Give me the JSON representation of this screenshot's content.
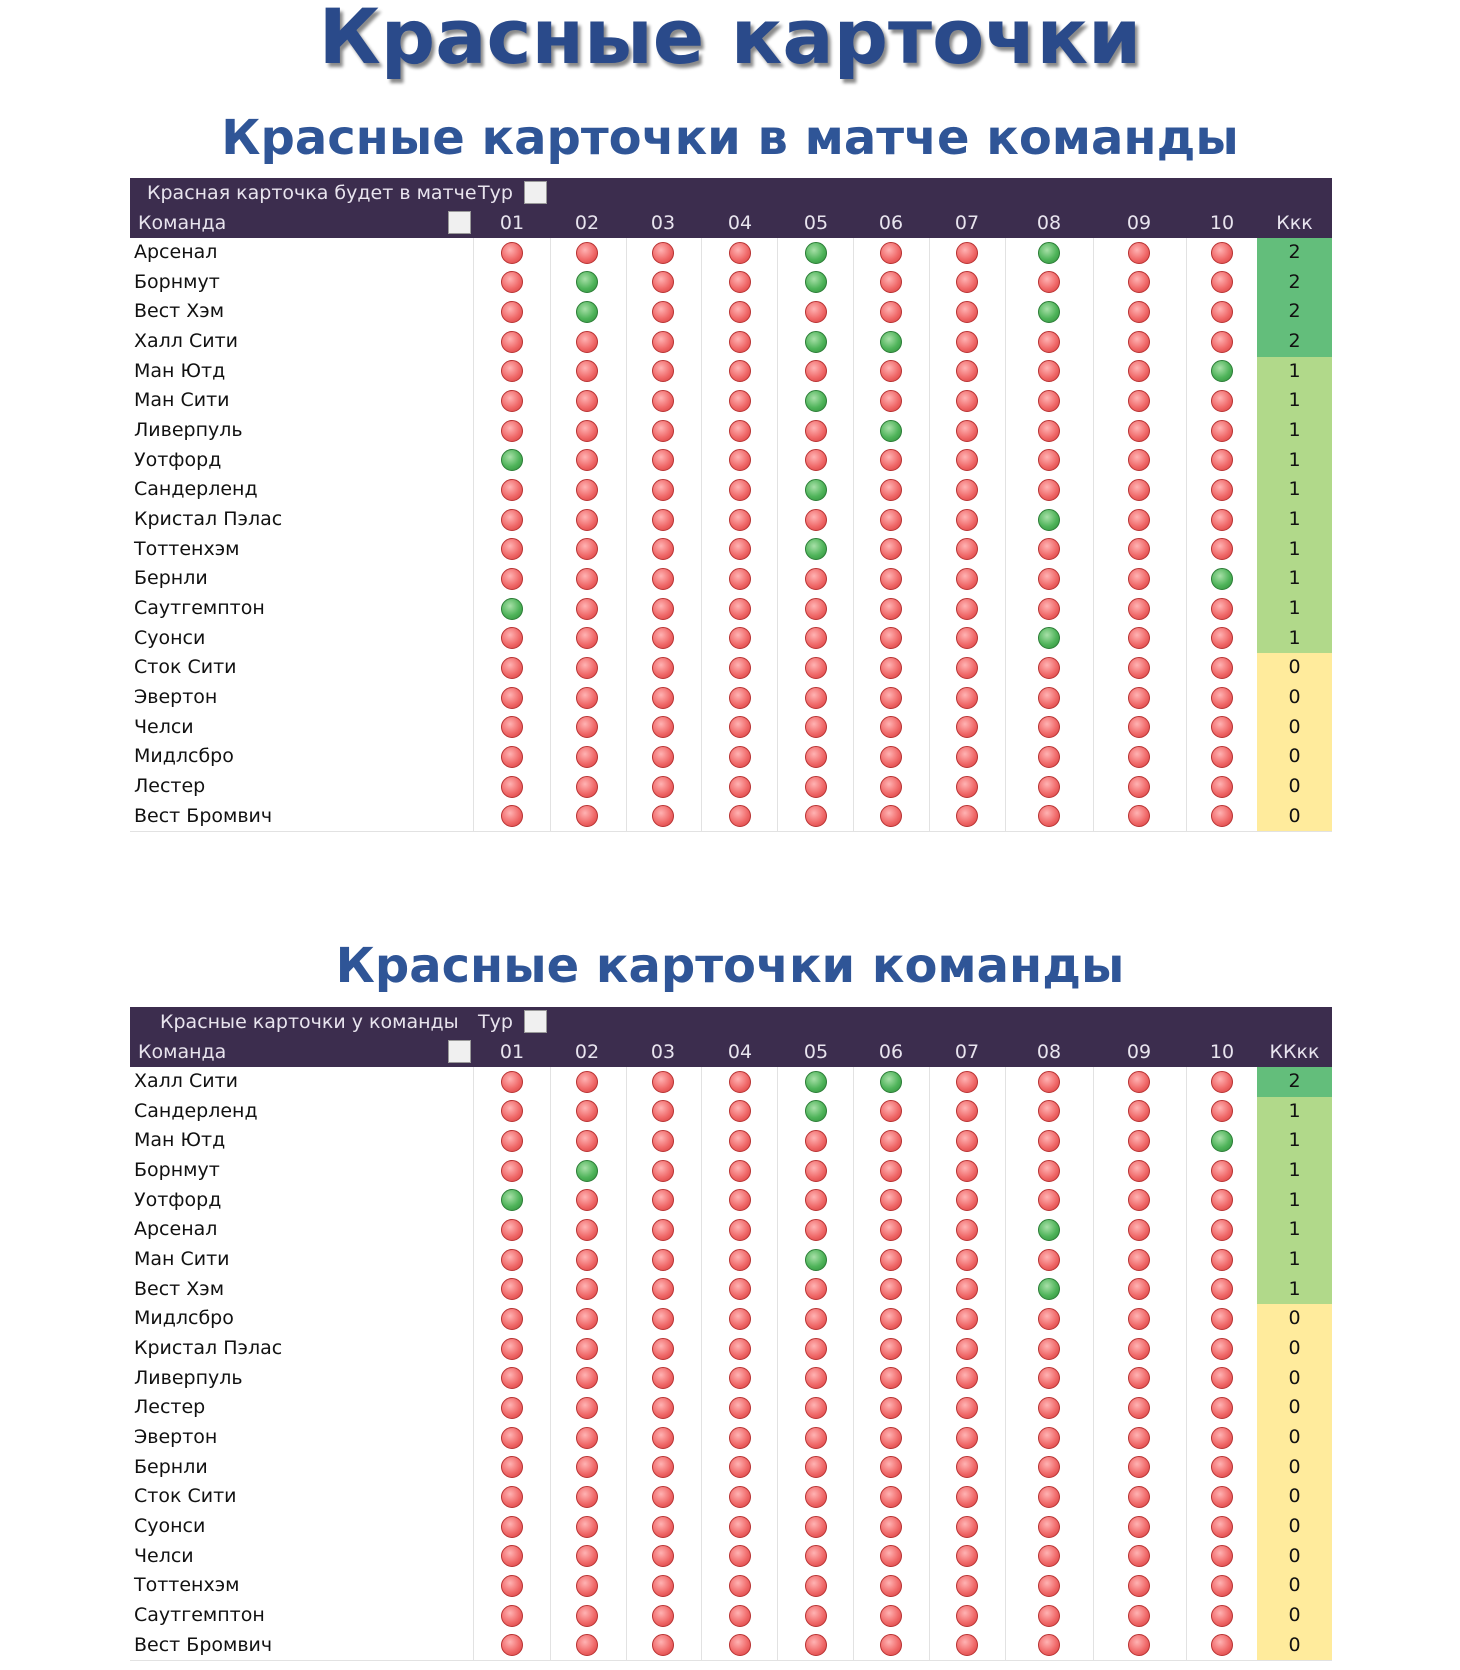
{
  "title": "Красные карточки",
  "tables": [
    {
      "title": "Красные карточки в матче команды",
      "header_label": "Красная карточка будет в матче",
      "tour_label": "Тур",
      "team_label": "Команда",
      "total_label": "Ккк",
      "columns": [
        "01",
        "02",
        "03",
        "04",
        "05",
        "06",
        "07",
        "08",
        "09",
        "10"
      ],
      "rows": [
        {
          "team": "Арсенал",
          "cells": [
            0,
            0,
            0,
            0,
            1,
            0,
            0,
            1,
            0,
            0
          ],
          "total": 2
        },
        {
          "team": "Борнмут",
          "cells": [
            0,
            1,
            0,
            0,
            1,
            0,
            0,
            0,
            0,
            0
          ],
          "total": 2
        },
        {
          "team": "Вест Хэм",
          "cells": [
            0,
            1,
            0,
            0,
            0,
            0,
            0,
            1,
            0,
            0
          ],
          "total": 2
        },
        {
          "team": "Халл Сити",
          "cells": [
            0,
            0,
            0,
            0,
            1,
            1,
            0,
            0,
            0,
            0
          ],
          "total": 2
        },
        {
          "team": "Ман Ютд",
          "cells": [
            0,
            0,
            0,
            0,
            0,
            0,
            0,
            0,
            0,
            1
          ],
          "total": 1
        },
        {
          "team": "Ман Сити",
          "cells": [
            0,
            0,
            0,
            0,
            1,
            0,
            0,
            0,
            0,
            0
          ],
          "total": 1
        },
        {
          "team": "Ливерпуль",
          "cells": [
            0,
            0,
            0,
            0,
            0,
            1,
            0,
            0,
            0,
            0
          ],
          "total": 1
        },
        {
          "team": "Уотфорд",
          "cells": [
            1,
            0,
            0,
            0,
            0,
            0,
            0,
            0,
            0,
            0
          ],
          "total": 1
        },
        {
          "team": "Сандерленд",
          "cells": [
            0,
            0,
            0,
            0,
            1,
            0,
            0,
            0,
            0,
            0
          ],
          "total": 1
        },
        {
          "team": "Кристал Пэлас",
          "cells": [
            0,
            0,
            0,
            0,
            0,
            0,
            0,
            1,
            0,
            0
          ],
          "total": 1
        },
        {
          "team": "Тоттенхэм",
          "cells": [
            0,
            0,
            0,
            0,
            1,
            0,
            0,
            0,
            0,
            0
          ],
          "total": 1
        },
        {
          "team": "Бернли",
          "cells": [
            0,
            0,
            0,
            0,
            0,
            0,
            0,
            0,
            0,
            1
          ],
          "total": 1
        },
        {
          "team": "Саутгемптон",
          "cells": [
            1,
            0,
            0,
            0,
            0,
            0,
            0,
            0,
            0,
            0
          ],
          "total": 1
        },
        {
          "team": "Суонси",
          "cells": [
            0,
            0,
            0,
            0,
            0,
            0,
            0,
            1,
            0,
            0
          ],
          "total": 1
        },
        {
          "team": "Сток Сити",
          "cells": [
            0,
            0,
            0,
            0,
            0,
            0,
            0,
            0,
            0,
            0
          ],
          "total": 0
        },
        {
          "team": "Эвертон",
          "cells": [
            0,
            0,
            0,
            0,
            0,
            0,
            0,
            0,
            0,
            0
          ],
          "total": 0
        },
        {
          "team": "Челси",
          "cells": [
            0,
            0,
            0,
            0,
            0,
            0,
            0,
            0,
            0,
            0
          ],
          "total": 0
        },
        {
          "team": "Мидлсбро",
          "cells": [
            0,
            0,
            0,
            0,
            0,
            0,
            0,
            0,
            0,
            0
          ],
          "total": 0
        },
        {
          "team": "Лестер",
          "cells": [
            0,
            0,
            0,
            0,
            0,
            0,
            0,
            0,
            0,
            0
          ],
          "total": 0
        },
        {
          "team": "Вест Бромвич",
          "cells": [
            0,
            0,
            0,
            0,
            0,
            0,
            0,
            0,
            0,
            0
          ],
          "total": 0
        }
      ]
    },
    {
      "title": "Красные карточки команды",
      "header_label": "Красные карточки у команды",
      "tour_label": "Тур",
      "team_label": "Команда",
      "total_label": "ККкк",
      "columns": [
        "01",
        "02",
        "03",
        "04",
        "05",
        "06",
        "07",
        "08",
        "09",
        "10"
      ],
      "rows": [
        {
          "team": "Халл Сити",
          "cells": [
            0,
            0,
            0,
            0,
            1,
            1,
            0,
            0,
            0,
            0
          ],
          "total": 2
        },
        {
          "team": "Сандерленд",
          "cells": [
            0,
            0,
            0,
            0,
            1,
            0,
            0,
            0,
            0,
            0
          ],
          "total": 1
        },
        {
          "team": "Ман Ютд",
          "cells": [
            0,
            0,
            0,
            0,
            0,
            0,
            0,
            0,
            0,
            1
          ],
          "total": 1
        },
        {
          "team": "Борнмут",
          "cells": [
            0,
            1,
            0,
            0,
            0,
            0,
            0,
            0,
            0,
            0
          ],
          "total": 1
        },
        {
          "team": "Уотфорд",
          "cells": [
            1,
            0,
            0,
            0,
            0,
            0,
            0,
            0,
            0,
            0
          ],
          "total": 1
        },
        {
          "team": "Арсенал",
          "cells": [
            0,
            0,
            0,
            0,
            0,
            0,
            0,
            1,
            0,
            0
          ],
          "total": 1
        },
        {
          "team": "Ман Сити",
          "cells": [
            0,
            0,
            0,
            0,
            1,
            0,
            0,
            0,
            0,
            0
          ],
          "total": 1
        },
        {
          "team": "Вест Хэм",
          "cells": [
            0,
            0,
            0,
            0,
            0,
            0,
            0,
            1,
            0,
            0
          ],
          "total": 1
        },
        {
          "team": "Мидлсбро",
          "cells": [
            0,
            0,
            0,
            0,
            0,
            0,
            0,
            0,
            0,
            0
          ],
          "total": 0
        },
        {
          "team": "Кристал Пэлас",
          "cells": [
            0,
            0,
            0,
            0,
            0,
            0,
            0,
            0,
            0,
            0
          ],
          "total": 0
        },
        {
          "team": "Ливерпуль",
          "cells": [
            0,
            0,
            0,
            0,
            0,
            0,
            0,
            0,
            0,
            0
          ],
          "total": 0
        },
        {
          "team": "Лестер",
          "cells": [
            0,
            0,
            0,
            0,
            0,
            0,
            0,
            0,
            0,
            0
          ],
          "total": 0
        },
        {
          "team": "Эвертон",
          "cells": [
            0,
            0,
            0,
            0,
            0,
            0,
            0,
            0,
            0,
            0
          ],
          "total": 0
        },
        {
          "team": "Бернли",
          "cells": [
            0,
            0,
            0,
            0,
            0,
            0,
            0,
            0,
            0,
            0
          ],
          "total": 0
        },
        {
          "team": "Сток Сити",
          "cells": [
            0,
            0,
            0,
            0,
            0,
            0,
            0,
            0,
            0,
            0
          ],
          "total": 0
        },
        {
          "team": "Суонси",
          "cells": [
            0,
            0,
            0,
            0,
            0,
            0,
            0,
            0,
            0,
            0
          ],
          "total": 0
        },
        {
          "team": "Челси",
          "cells": [
            0,
            0,
            0,
            0,
            0,
            0,
            0,
            0,
            0,
            0
          ],
          "total": 0
        },
        {
          "team": "Тоттенхэм",
          "cells": [
            0,
            0,
            0,
            0,
            0,
            0,
            0,
            0,
            0,
            0
          ],
          "total": 0
        },
        {
          "team": "Саутгемптон",
          "cells": [
            0,
            0,
            0,
            0,
            0,
            0,
            0,
            0,
            0,
            0
          ],
          "total": 0
        },
        {
          "team": "Вест Бромвич",
          "cells": [
            0,
            0,
            0,
            0,
            0,
            0,
            0,
            0,
            0,
            0
          ],
          "total": 0
        }
      ]
    }
  ]
}
